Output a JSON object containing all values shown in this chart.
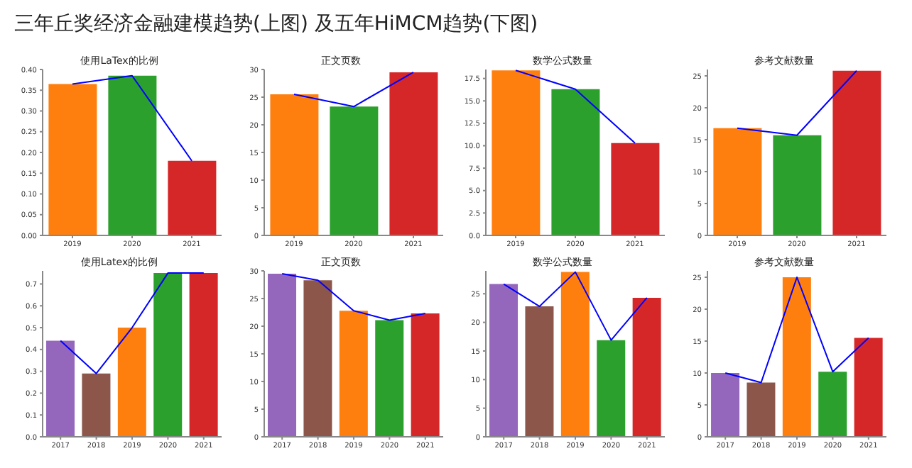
{
  "chart_data": [
    {
      "type": "bar",
      "title": "使用LaTex的比例",
      "annotations": [
        "三年丘奖经济金融建模趋势(上图) 及五年HiMCM趋势(下图)"
      ],
      "categories": [
        "2019",
        "2020",
        "2021"
      ],
      "series": [
        {
          "colors": [
            "#ff7f0e",
            "#2ca02c",
            "#d62728"
          ],
          "values": [
            0.365,
            0.385,
            0.18
          ]
        },
        {
          "type": "line",
          "color": "#0000ff",
          "values": [
            0.365,
            0.385,
            0.18
          ]
        }
      ],
      "ylim": [
        0,
        0.4
      ],
      "yticks": [
        {
          "value": 0,
          "label": "0.00"
        },
        {
          "value": 0.05,
          "label": "0.05"
        },
        {
          "value": 0.1,
          "label": "0.10"
        },
        {
          "value": 0.15,
          "label": "0.15"
        },
        {
          "value": 0.2,
          "label": "0.20"
        },
        {
          "value": 0.25,
          "label": "0.25"
        },
        {
          "value": 0.3,
          "label": "0.30"
        },
        {
          "value": 0.35,
          "label": "0.35"
        },
        {
          "value": 0.4,
          "label": "0.40"
        }
      ],
      "marker": "none"
    },
    {
      "type": "bar",
      "title": "正文页数",
      "categories": [
        "2019",
        "2020",
        "2021"
      ],
      "series": [
        {
          "colors": [
            "#ff7f0e",
            "#2ca02c",
            "#d62728"
          ],
          "values": [
            25.5,
            23.3,
            29.5
          ]
        },
        {
          "type": "line",
          "color": "#0000ff",
          "values": [
            25.5,
            23.3,
            29.5
          ]
        }
      ],
      "ylim": [
        0,
        30
      ],
      "yticks": [
        0,
        5,
        10,
        15,
        20,
        25,
        30
      ],
      "marker": "none"
    },
    {
      "type": "bar",
      "title": "数学公式数量",
      "categories": [
        "2019",
        "2020",
        "2021"
      ],
      "series": [
        {
          "colors": [
            "#ff7f0e",
            "#2ca02c",
            "#d62728"
          ],
          "values": [
            18.4,
            16.3,
            10.3
          ]
        },
        {
          "type": "line",
          "color": "#0000ff",
          "values": [
            18.4,
            16.3,
            10.3
          ]
        }
      ],
      "ylim": [
        0,
        18.5
      ],
      "yticks": [
        {
          "value": 0,
          "label": "0.0"
        },
        {
          "value": 2.5,
          "label": "2.5"
        },
        {
          "value": 5,
          "label": "5.0"
        },
        {
          "value": 7.5,
          "label": "7.5"
        },
        {
          "value": 10,
          "label": "10.0"
        },
        {
          "value": 12.5,
          "label": "12.5"
        },
        {
          "value": 15,
          "label": "15.0"
        },
        {
          "value": 17.5,
          "label": "17.5"
        }
      ],
      "marker": "none"
    },
    {
      "type": "bar",
      "title": "参考文献数量",
      "categories": [
        "2019",
        "2020",
        "2021"
      ],
      "series": [
        {
          "colors": [
            "#ff7f0e",
            "#2ca02c",
            "#d62728"
          ],
          "values": [
            16.8,
            15.7,
            25.8
          ]
        },
        {
          "type": "line",
          "color": "#0000ff",
          "values": [
            16.8,
            15.7,
            25.8
          ]
        }
      ],
      "ylim": [
        0,
        26
      ],
      "yticks": [
        0,
        5,
        10,
        15,
        20,
        25
      ],
      "marker": "none"
    },
    {
      "type": "bar",
      "title": "使用Latex的比例",
      "categories": [
        "2017",
        "2018",
        "2019",
        "2020",
        "2021"
      ],
      "series": [
        {
          "colors": [
            "#9467bd",
            "#8c564b",
            "#ff7f0e",
            "#2ca02c",
            "#d62728"
          ],
          "values": [
            0.44,
            0.29,
            0.5,
            0.75,
            0.75
          ]
        },
        {
          "type": "line",
          "color": "#0000ff",
          "values": [
            0.44,
            0.29,
            0.5,
            0.75,
            0.75
          ]
        }
      ],
      "ylim": [
        0,
        0.76
      ],
      "yticks": [
        {
          "value": 0,
          "label": "0.0"
        },
        {
          "value": 0.1,
          "label": "0.1"
        },
        {
          "value": 0.2,
          "label": "0.2"
        },
        {
          "value": 0.3,
          "label": "0.3"
        },
        {
          "value": 0.4,
          "label": "0.4"
        },
        {
          "value": 0.5,
          "label": "0.5"
        },
        {
          "value": 0.6,
          "label": "0.6"
        },
        {
          "value": 0.7,
          "label": "0.7"
        }
      ],
      "marker": "none"
    },
    {
      "type": "bar",
      "title": "正文页数",
      "categories": [
        "2017",
        "2018",
        "2019",
        "2020",
        "2021"
      ],
      "series": [
        {
          "colors": [
            "#9467bd",
            "#8c564b",
            "#ff7f0e",
            "#2ca02c",
            "#d62728"
          ],
          "values": [
            29.5,
            28.3,
            22.8,
            21.1,
            22.3
          ]
        },
        {
          "type": "line",
          "color": "#0000ff",
          "values": [
            29.5,
            28.3,
            22.8,
            21.1,
            22.3
          ]
        }
      ],
      "ylim": [
        0,
        30
      ],
      "yticks": [
        0,
        5,
        10,
        15,
        20,
        25,
        30
      ],
      "marker": "none"
    },
    {
      "type": "bar",
      "title": "数学公式数量",
      "categories": [
        "2017",
        "2018",
        "2019",
        "2020",
        "2021"
      ],
      "series": [
        {
          "colors": [
            "#9467bd",
            "#8c564b",
            "#ff7f0e",
            "#2ca02c",
            "#d62728"
          ],
          "values": [
            26.7,
            22.8,
            28.8,
            16.9,
            24.3
          ]
        },
        {
          "type": "line",
          "color": "#0000ff",
          "values": [
            26.7,
            22.8,
            28.8,
            16.9,
            24.3
          ]
        }
      ],
      "ylim": [
        0,
        29
      ],
      "yticks": [
        0,
        5,
        10,
        15,
        20,
        25
      ],
      "marker": "none"
    },
    {
      "type": "bar",
      "title": "参考文献数量",
      "categories": [
        "2017",
        "2018",
        "2019",
        "2020",
        "2021"
      ],
      "series": [
        {
          "colors": [
            "#9467bd",
            "#8c564b",
            "#ff7f0e",
            "#2ca02c",
            "#d62728"
          ],
          "values": [
            10.0,
            8.5,
            25.0,
            10.2,
            15.5
          ]
        },
        {
          "type": "line",
          "color": "#0000ff",
          "values": [
            10.0,
            8.5,
            25.0,
            10.2,
            15.5
          ]
        }
      ],
      "ylim": [
        0,
        26
      ],
      "yticks": [
        0,
        5,
        10,
        15,
        20,
        25
      ],
      "marker": "none"
    }
  ]
}
